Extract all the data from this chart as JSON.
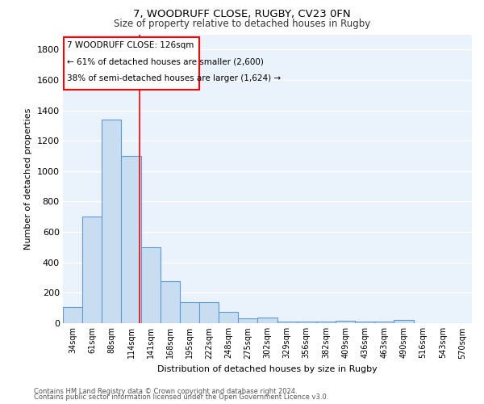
{
  "title1": "7, WOODRUFF CLOSE, RUGBY, CV23 0FN",
  "title2": "Size of property relative to detached houses in Rugby",
  "xlabel": "Distribution of detached houses by size in Rugby",
  "ylabel": "Number of detached properties",
  "categories": [
    "34sqm",
    "61sqm",
    "88sqm",
    "114sqm",
    "141sqm",
    "168sqm",
    "195sqm",
    "222sqm",
    "248sqm",
    "275sqm",
    "302sqm",
    "329sqm",
    "356sqm",
    "382sqm",
    "409sqm",
    "436sqm",
    "463sqm",
    "490sqm",
    "516sqm",
    "543sqm",
    "570sqm"
  ],
  "values": [
    105,
    700,
    1340,
    1100,
    500,
    275,
    138,
    138,
    75,
    30,
    35,
    12,
    12,
    12,
    15,
    12,
    12,
    20,
    0,
    0,
    0
  ],
  "bar_color": "#c9ddf0",
  "bar_edge_color": "#5b9bd5",
  "annotation_text_line1": "7 WOODRUFF CLOSE: 126sqm",
  "annotation_text_line2": "← 61% of detached houses are smaller (2,600)",
  "annotation_text_line3": "38% of semi-detached houses are larger (1,624) →",
  "ylim": [
    0,
    1900
  ],
  "yticks": [
    0,
    200,
    400,
    600,
    800,
    1000,
    1200,
    1400,
    1600,
    1800
  ],
  "bg_color": "#eaf2fb",
  "grid_color": "#ffffff",
  "footer1": "Contains HM Land Registry data © Crown copyright and database right 2024.",
  "footer2": "Contains public sector information licensed under the Open Government Licence v3.0."
}
